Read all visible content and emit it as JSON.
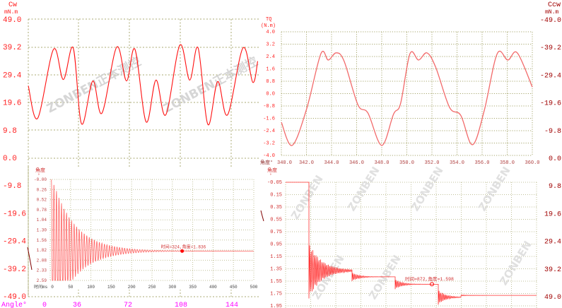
{
  "watermark": {
    "brand": "ZONBEN正本测控",
    "short": "ZONBEN"
  },
  "colors": {
    "main_curve": "#ff1010",
    "tq_curve": "#f26a6a",
    "left_axis": "#ff2020",
    "right_axis": "#a00000",
    "angle_axis": "#ff00ff",
    "grid": "#a8a870",
    "inset_grid": "#c0c098"
  },
  "chart_data": [
    {
      "type": "line",
      "y_axis_left": {
        "unit_top": "Cw",
        "unit": "mN.m",
        "range": [
          -49,
          49
        ],
        "ticks": [
          "49.0",
          "39.2",
          "29.4",
          "19.6",
          "9.8",
          "0.0",
          "-9.8",
          "-19.6",
          "-29.4",
          "-39.2",
          "-49.0"
        ]
      },
      "y_axis_right": {
        "unit_top": "Ccw",
        "unit": "mN.m",
        "ticks": [
          "-49.0",
          "-39.2",
          "-29.4",
          "-19.6",
          "-9.8",
          "0.0",
          "9.8",
          "19.6",
          "29.4",
          "39.2",
          "49.0"
        ]
      },
      "x_axis": {
        "label": "Angle°",
        "ticks": [
          "0",
          "36",
          "72",
          "108",
          "144"
        ]
      },
      "grid": true,
      "series": [
        {
          "x": [
            0,
            6.7,
            18,
            25,
            32,
            38,
            46,
            52.5,
            63,
            70,
            76,
            84,
            91,
            98,
            108,
            115,
            121,
            128,
            135,
            142,
            153,
            160,
            163.5
          ],
          "y": [
            25.4,
            13.9,
            38.3,
            27.6,
            38.8,
            11.9,
            27.1,
            15.7,
            39.1,
            27.1,
            38.3,
            12.6,
            27.4,
            15.1,
            39.8,
            27.4,
            38.8,
            11.7,
            26.9,
            15.1,
            38.8,
            26.6,
            34.1
          ]
        }
      ]
    },
    {
      "type": "line",
      "y_axis": {
        "label": "TQ",
        "unit": "(N.m)",
        "range": [
          -4,
          4
        ],
        "ticks": [
          "4.0",
          "3.2",
          "2.4",
          "1.6",
          "0.8",
          "0.0",
          "-0.8",
          "-1.6",
          "-2.4",
          "-3.2",
          "-4.0"
        ]
      },
      "x_axis": {
        "label": "角度°",
        "range": [
          340,
          360
        ],
        "ticks": [
          "340.0",
          "342.0",
          "344.0",
          "346.0",
          "348.0",
          "350.0",
          "352.0",
          "354.0",
          "356.0",
          "358.0",
          "360.0"
        ]
      },
      "grid": true,
      "series": [
        {
          "x": [
            340,
            340.86,
            342.0,
            343.15,
            343.74,
            344.37,
            345.0,
            346.1,
            346.9,
            348.0,
            348.94,
            349.5,
            350.25,
            350.94,
            351.6,
            352.3,
            353.4,
            354.3,
            355.23,
            356.17,
            357.2,
            358.05,
            358.8,
            360
          ],
          "y": [
            -1.85,
            -3.35,
            -1.03,
            2.58,
            2.17,
            2.64,
            2.1,
            -0.72,
            -1.26,
            -3.35,
            -1.33,
            -0.65,
            2.58,
            2.17,
            2.64,
            1.71,
            -0.88,
            -1.41,
            -3.31,
            -1.1,
            2.58,
            2.17,
            2.64,
            0.42
          ]
        }
      ]
    },
    {
      "type": "line",
      "y_axis": {
        "label": "角度",
        "unit": "°",
        "range": [
          0,
          2.59
        ],
        "inverted": true,
        "ticks": [
          "-0.00",
          "0.26",
          "0.52",
          "0.78",
          "1.04",
          "1.30",
          "1.56",
          "1.82",
          "2.08",
          "2.33",
          "2.59"
        ]
      },
      "x_axis": {
        "label": "时间ms",
        "range": [
          0,
          500
        ],
        "ticks": [
          "0",
          "50",
          "100",
          "150",
          "200",
          "250",
          "300",
          "350",
          "400",
          "450",
          "500"
        ]
      },
      "grid": true,
      "settled_value": 1.836,
      "marker": {
        "time": 324,
        "angle": 1.836,
        "label": "时间=324,角度=1.836"
      }
    },
    {
      "type": "line",
      "y_axis": {
        "label": "角度",
        "unit": "°",
        "range": [
          -0.05,
          1.95
        ],
        "inverted": true,
        "ticks": [
          "-0.05",
          "0.15",
          "0.35",
          "0.55",
          "0.75",
          "0.95",
          "1.15",
          "1.35",
          "1.55",
          "1.75",
          "1.95"
        ]
      },
      "grid": true,
      "levels": [
        -0.05,
        1.38,
        1.48,
        1.6,
        1.81,
        1.78
      ],
      "marker": {
        "time": 872,
        "angle": 1.598,
        "label": "时间=872,角度=1.598"
      }
    }
  ]
}
